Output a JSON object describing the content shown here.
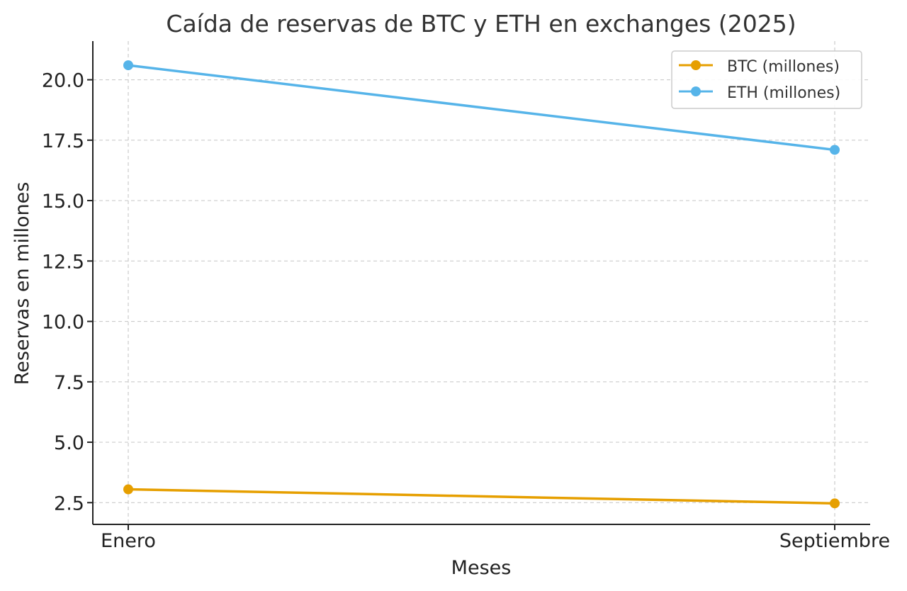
{
  "chart_data": {
    "type": "line",
    "title": "Caída de reservas de BTC y ETH en exchanges (2025)",
    "xlabel": "Meses",
    "ylabel": "Reservas en millones",
    "categories": [
      "Enero",
      "Septiembre"
    ],
    "series": [
      {
        "name": "BTC (millones)",
        "values": [
          3.05,
          2.47
        ],
        "color": "#E69F00"
      },
      {
        "name": "ETH (millones)",
        "values": [
          20.6,
          17.1
        ],
        "color": "#56B4E9"
      }
    ],
    "ylim": [
      1.6,
      21.6
    ],
    "yticks": [
      "2.5",
      "5.0",
      "7.5",
      "10.0",
      "12.5",
      "15.0",
      "17.5",
      "20.0"
    ],
    "grid": true,
    "legend_position": "top-right",
    "marker": "circle"
  }
}
